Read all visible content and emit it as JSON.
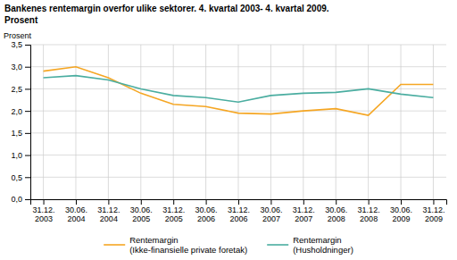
{
  "chart_data": {
    "type": "line",
    "title": "Bankenes rentemargin overfor ulike sektorer. 4. kvartal 2003- 4. kvartal 2009.",
    "subtitle": "Prosent",
    "y_label": "Prosent",
    "categories": [
      "31.12.\n2003",
      "30.06.\n2004",
      "31.12.\n2004",
      "30.06.\n2005",
      "31.12.\n2005",
      "30.06.\n2006",
      "31.12.\n2006",
      "30.06.\n2007",
      "31.12.\n2007",
      "30.06.\n2008",
      "31.12.\n2008",
      "30.06.\n2009",
      "31.12.\n2009"
    ],
    "series": [
      {
        "name": "Rentemargin\n(Ikke-finansielle private foretak)",
        "color": "#f5a623",
        "values": [
          2.9,
          3.0,
          2.75,
          2.4,
          2.15,
          2.1,
          1.95,
          1.93,
          2.0,
          2.05,
          1.9,
          2.6,
          2.6
        ]
      },
      {
        "name": "Rentemargin\n(Husholdninger)",
        "color": "#4aada0",
        "values": [
          2.75,
          2.8,
          2.7,
          2.5,
          2.35,
          2.3,
          2.2,
          2.35,
          2.4,
          2.42,
          2.5,
          2.38,
          2.3
        ]
      }
    ],
    "ylim": [
      0,
      3.5
    ],
    "yticks": [
      {
        "value": 0,
        "label": "0,0"
      },
      {
        "value": 0.5,
        "label": "0,5"
      },
      {
        "value": 1.0,
        "label": "1,0"
      },
      {
        "value": 1.5,
        "label": "1,5"
      },
      {
        "value": 2.0,
        "label": "2,0"
      },
      {
        "value": 2.5,
        "label": "2,5"
      },
      {
        "value": 3.0,
        "label": "3,0"
      },
      {
        "value": 3.5,
        "label": "3,5"
      }
    ],
    "grid": true,
    "legend": "bottom"
  }
}
